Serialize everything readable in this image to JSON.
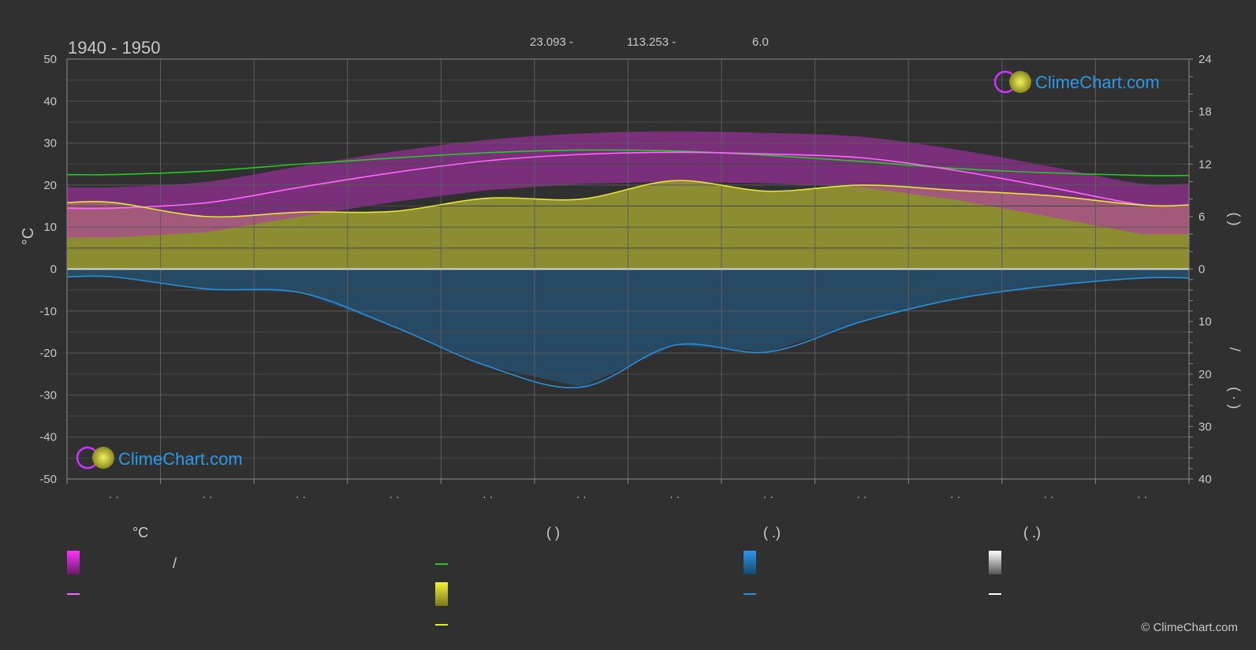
{
  "header": {
    "period": "1940 - 1950",
    "lat": "23.093 -",
    "lon": "113.253 -",
    "elev": "6.0"
  },
  "left_axis_title": "°C",
  "right_axis_upper_title": "(  )",
  "right_axis_lower_title": "/\n\n( · )",
  "copyright": "© ClimeChart.com",
  "watermark": "ClimeChart.com",
  "legend": {
    "col1_header": "°C",
    "col1_row1": "/",
    "col2_header": "(          )",
    "col3_header": "(   .)",
    "col4_header": "(   .)"
  },
  "colors": {
    "daylight": "#22cc22",
    "sunshine": "#e6e63a",
    "temp_mean": "#ff66ff",
    "temp_band": "#cc22cc",
    "precip": "#2a8fd8",
    "sunshine_band": "#a8a832"
  },
  "chart_data": {
    "type": "line",
    "x_ticks": [
      "· ·",
      "· ·",
      "· ·",
      "· ·",
      "· ·",
      "· ·",
      "· ·",
      "· ·",
      "· ·",
      "· ·",
      "· ·",
      "· ·"
    ],
    "left_axis": {
      "unit": "°C",
      "ylim": [
        -50,
        50
      ],
      "ticks": [
        50,
        40,
        30,
        20,
        10,
        0,
        -10,
        -20,
        -30,
        -40,
        -50
      ]
    },
    "right_axis_upper": {
      "ylim": [
        0,
        24
      ],
      "ticks": [
        24,
        18,
        12,
        6,
        0
      ]
    },
    "right_axis_lower": {
      "ylim": [
        0,
        40
      ],
      "ticks": [
        0,
        10,
        20,
        30,
        40
      ]
    },
    "series": [
      {
        "key": "daylight",
        "axis": "upper_right",
        "values": [
          10.8,
          11.2,
          12.0,
          12.7,
          13.3,
          13.6,
          13.5,
          13.0,
          12.3,
          11.5,
          11.0,
          10.7
        ]
      },
      {
        "key": "sunshine",
        "axis": "upper_right",
        "values": [
          7.6,
          6.0,
          6.5,
          6.6,
          8.1,
          8.0,
          10.1,
          8.9,
          9.6,
          9.0,
          8.4,
          7.3
        ]
      },
      {
        "key": "temp_mean",
        "axis": "left",
        "values": [
          14.5,
          15.8,
          19.5,
          23.0,
          25.8,
          27.3,
          27.8,
          27.4,
          26.5,
          23.5,
          19.5,
          15.3
        ]
      },
      {
        "key": "precip",
        "axis": "lower_right",
        "values": [
          1.5,
          3.8,
          4.5,
          11.0,
          18.5,
          22.5,
          14.5,
          15.8,
          10.0,
          5.7,
          3.2,
          1.7
        ]
      }
    ]
  }
}
